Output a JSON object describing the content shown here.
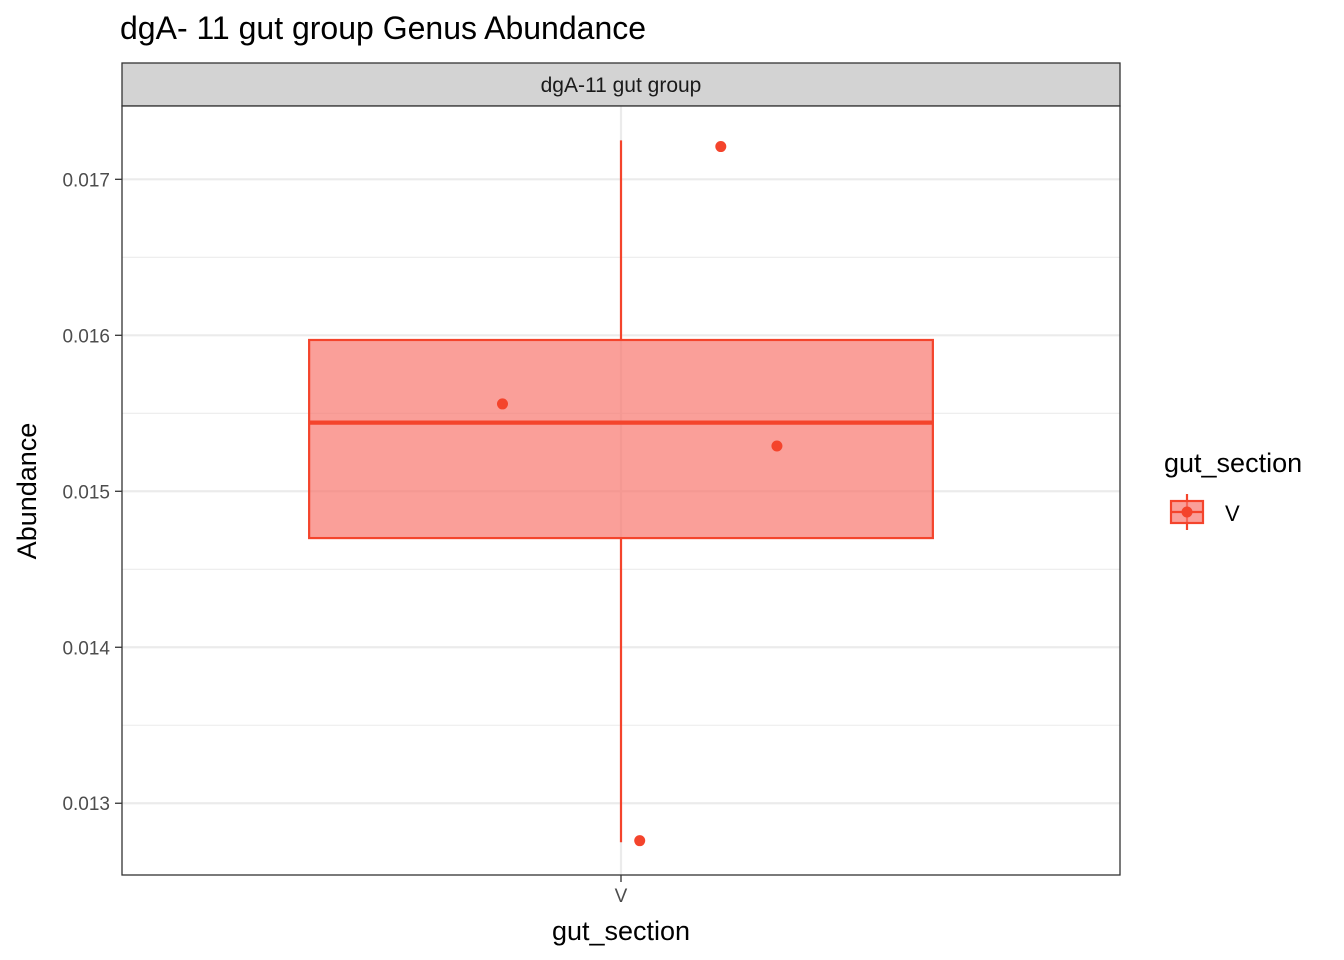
{
  "chart_data": {
    "type": "box",
    "title": "dgA- 11 gut group Genus Abundance",
    "facet_label": "dgA-11 gut group",
    "xlabel": "gut_section",
    "ylabel": "Abundance",
    "categories": [
      "V"
    ],
    "y_ticks": [
      "0.013",
      "0.014",
      "0.015",
      "0.016",
      "0.017"
    ],
    "ylim": [
      0.01254,
      0.01747
    ],
    "grid": true,
    "legend": {
      "title": "gut_section",
      "position": "right",
      "entries": [
        "V"
      ]
    },
    "box": {
      "category": "V",
      "min": 0.01275,
      "q1": 0.0147,
      "median": 0.01544,
      "q3": 0.01597,
      "max": 0.01725
    },
    "points": [
      {
        "x": "V",
        "y": 0.01721
      },
      {
        "x": "V",
        "y": 0.01556
      },
      {
        "x": "V",
        "y": 0.01529
      },
      {
        "x": "V",
        "y": 0.01276
      }
    ],
    "colors": {
      "fill": "#f8766d",
      "stroke": "#f4442c",
      "point": "#f4442c"
    }
  }
}
